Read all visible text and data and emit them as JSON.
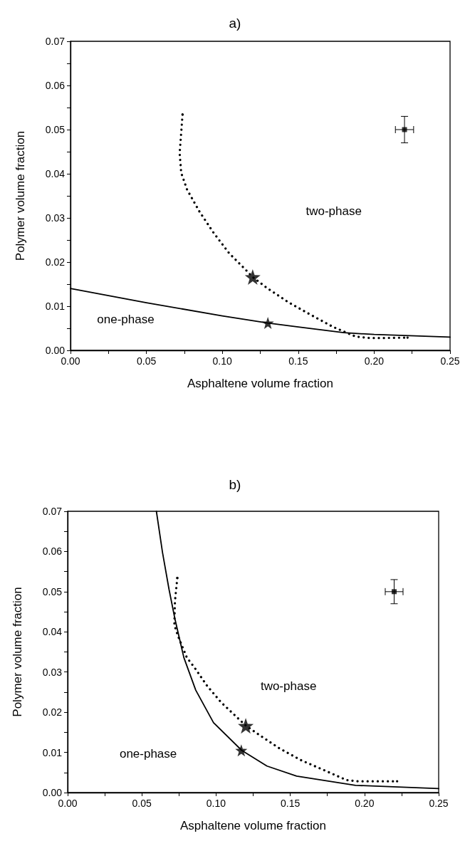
{
  "chart_data": [
    {
      "type": "line",
      "title": "a)",
      "xlabel": "Asphaltene volume fraction",
      "ylabel": "Polymer volume fraction",
      "xlim": [
        0,
        0.25
      ],
      "ylim": [
        0,
        0.07
      ],
      "xticks": [
        {
          "value": 0,
          "label": "0.00"
        },
        {
          "value": 0.025,
          "label": null
        },
        {
          "value": 0.05,
          "label": "0.05"
        },
        {
          "value": 0.075,
          "label": null
        },
        {
          "value": 0.1,
          "label": "0.10"
        },
        {
          "value": 0.125,
          "label": null
        },
        {
          "value": 0.15,
          "label": "0.15"
        },
        {
          "value": 0.175,
          "label": null
        },
        {
          "value": 0.2,
          "label": "0.20"
        },
        {
          "value": 0.225,
          "label": null
        },
        {
          "value": 0.25,
          "label": "0.25"
        }
      ],
      "yticks": [
        {
          "value": 0,
          "label": "0.00"
        },
        {
          "value": 0.005,
          "label": null
        },
        {
          "value": 0.01,
          "label": "0.01"
        },
        {
          "value": 0.015,
          "label": null
        },
        {
          "value": 0.02,
          "label": "0.02"
        },
        {
          "value": 0.025,
          "label": null
        },
        {
          "value": 0.03,
          "label": "0.03"
        },
        {
          "value": 0.035,
          "label": null
        },
        {
          "value": 0.04,
          "label": "0.04"
        },
        {
          "value": 0.045,
          "label": null
        },
        {
          "value": 0.05,
          "label": "0.05"
        },
        {
          "value": 0.055,
          "label": null
        },
        {
          "value": 0.06,
          "label": "0.06"
        },
        {
          "value": 0.065,
          "label": null
        },
        {
          "value": 0.07,
          "label": "0.07"
        }
      ],
      "grid": false,
      "annotations": [
        "two-phase",
        "one-phase"
      ],
      "series": [
        {
          "color": "#000000",
          "marker": "none",
          "line_style": "solid",
          "x": [
            0,
            0.05,
            0.1,
            0.13,
            0.15,
            0.18,
            0.2,
            0.25
          ],
          "values": [
            0.014,
            0.0108,
            0.0078,
            0.0062,
            0.0053,
            0.004,
            0.0036,
            0.003
          ]
        },
        {
          "color": "#000000",
          "marker": "none",
          "line_style": "dotted",
          "x": [
            0.0738,
            0.0719,
            0.0729,
            0.0768,
            0.085,
            0.0943,
            0.1045,
            0.1158,
            0.12,
            0.1295,
            0.137,
            0.143,
            0.158,
            0.173,
            0.188,
            0.197,
            0.206,
            0.222
          ],
          "values": [
            0.0534,
            0.0446,
            0.0402,
            0.0364,
            0.0314,
            0.0266,
            0.022,
            0.0181,
            0.0166,
            0.0141,
            0.0124,
            0.011,
            0.0081,
            0.0053,
            0.0031,
            0.0028,
            0.0028,
            0.0029
          ]
        },
        {
          "type": "scatter",
          "color": "#000000",
          "marker": "star",
          "x": [
            0.12
          ],
          "values": [
            0.0166
          ]
        },
        {
          "type": "scatter",
          "color": "#000000",
          "marker": "star",
          "x": [
            0.13
          ],
          "values": [
            0.0062
          ]
        },
        {
          "type": "scatter",
          "color": "#000000",
          "marker": "square",
          "x": [
            0.22
          ],
          "values": [
            0.05
          ],
          "errors": [
            0.003
          ],
          "xerrors": [
            0.006
          ]
        }
      ]
    },
    {
      "type": "line",
      "title": "b)",
      "xlabel": "Asphaltene volume fraction",
      "ylabel": "Polymer volume fraction",
      "xlim": [
        0,
        0.25
      ],
      "ylim": [
        0,
        0.07
      ],
      "xticks": [
        {
          "value": 0,
          "label": "0.00"
        },
        {
          "value": 0.025,
          "label": null
        },
        {
          "value": 0.05,
          "label": "0.05"
        },
        {
          "value": 0.075,
          "label": null
        },
        {
          "value": 0.1,
          "label": "0.10"
        },
        {
          "value": 0.125,
          "label": null
        },
        {
          "value": 0.15,
          "label": "0.15"
        },
        {
          "value": 0.175,
          "label": null
        },
        {
          "value": 0.2,
          "label": "0.20"
        },
        {
          "value": 0.225,
          "label": null
        },
        {
          "value": 0.25,
          "label": "0.25"
        }
      ],
      "yticks": [
        {
          "value": 0,
          "label": "0.00"
        },
        {
          "value": 0.005,
          "label": null
        },
        {
          "value": 0.01,
          "label": "0.01"
        },
        {
          "value": 0.015,
          "label": null
        },
        {
          "value": 0.02,
          "label": "0.02"
        },
        {
          "value": 0.025,
          "label": null
        },
        {
          "value": 0.03,
          "label": "0.03"
        },
        {
          "value": 0.035,
          "label": null
        },
        {
          "value": 0.04,
          "label": "0.04"
        },
        {
          "value": 0.045,
          "label": null
        },
        {
          "value": 0.05,
          "label": "0.05"
        },
        {
          "value": 0.055,
          "label": null
        },
        {
          "value": 0.06,
          "label": "0.06"
        },
        {
          "value": 0.065,
          "label": null
        },
        {
          "value": 0.07,
          "label": "0.07"
        }
      ],
      "grid": false,
      "annotations": [
        "two-phase",
        "one-phase"
      ],
      "series": [
        {
          "color": "#000000",
          "marker": "none",
          "line_style": "solid",
          "x": [
            0.0598,
            0.0639,
            0.0683,
            0.0723,
            0.0783,
            0.0863,
            0.0983,
            0.1173,
            0.1343,
            0.1543,
            0.194,
            0.25
          ],
          "values": [
            0.07,
            0.0598,
            0.0506,
            0.0432,
            0.0336,
            0.0255,
            0.0174,
            0.0105,
            0.0066,
            0.0041,
            0.0018,
            0.001
          ]
        },
        {
          "color": "#000000",
          "marker": "none",
          "line_style": "dotted",
          "x": [
            0.0739,
            0.0723,
            0.0719,
            0.0743,
            0.0803,
            0.0853,
            0.0939,
            0.1033,
            0.1159,
            0.1203,
            0.1293,
            0.1423,
            0.157,
            0.172,
            0.188,
            0.196,
            0.222
          ],
          "values": [
            0.0534,
            0.0476,
            0.0417,
            0.039,
            0.0336,
            0.0312,
            0.0266,
            0.0225,
            0.0181,
            0.0166,
            0.0143,
            0.0111,
            0.0081,
            0.0057,
            0.0031,
            0.0028,
            0.0028
          ]
        },
        {
          "type": "scatter",
          "color": "#000000",
          "marker": "star",
          "x": [
            0.12
          ],
          "values": [
            0.0166
          ]
        },
        {
          "type": "scatter",
          "color": "#000000",
          "marker": "star",
          "x": [
            0.117
          ],
          "values": [
            0.0105
          ]
        },
        {
          "type": "scatter",
          "color": "#000000",
          "marker": "square",
          "x": [
            0.22
          ],
          "values": [
            0.05
          ],
          "errors": [
            0.003
          ],
          "xerrors": [
            0.006
          ]
        }
      ]
    }
  ]
}
